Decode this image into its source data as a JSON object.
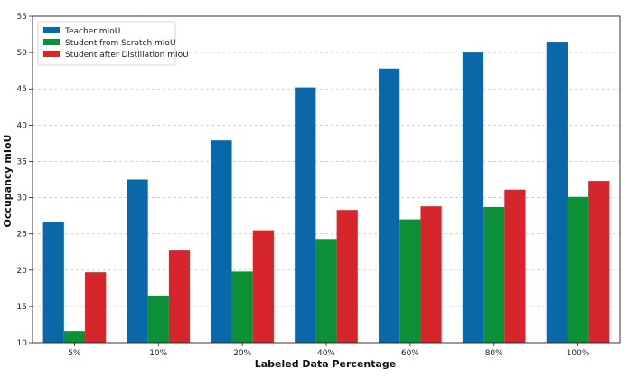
{
  "chart_data": {
    "type": "bar",
    "title": "",
    "xlabel": "Labeled Data Percentage",
    "ylabel": "Occupancy mIoU",
    "categories": [
      "5%",
      "10%",
      "20%",
      "40%",
      "60%",
      "80%",
      "100%"
    ],
    "ylim": [
      10,
      55
    ],
    "yticks": [
      10,
      15,
      20,
      25,
      30,
      35,
      40,
      45,
      50,
      55
    ],
    "grid": "horizontal-dashed",
    "legend_position": "top-left",
    "series": [
      {
        "name": "Teacher mIoU",
        "color": "#0a67a8",
        "values": [
          26.7,
          32.5,
          37.9,
          45.2,
          47.8,
          50.0,
          51.5
        ]
      },
      {
        "name": "Student from Scratch mIoU",
        "color": "#0b9037",
        "values": [
          11.6,
          16.5,
          19.8,
          24.3,
          27.0,
          28.7,
          30.1
        ]
      },
      {
        "name": "Student after Distillation mIoU",
        "color": "#d7252c",
        "values": [
          19.7,
          22.7,
          25.5,
          28.3,
          28.8,
          31.1,
          32.3
        ]
      }
    ]
  }
}
